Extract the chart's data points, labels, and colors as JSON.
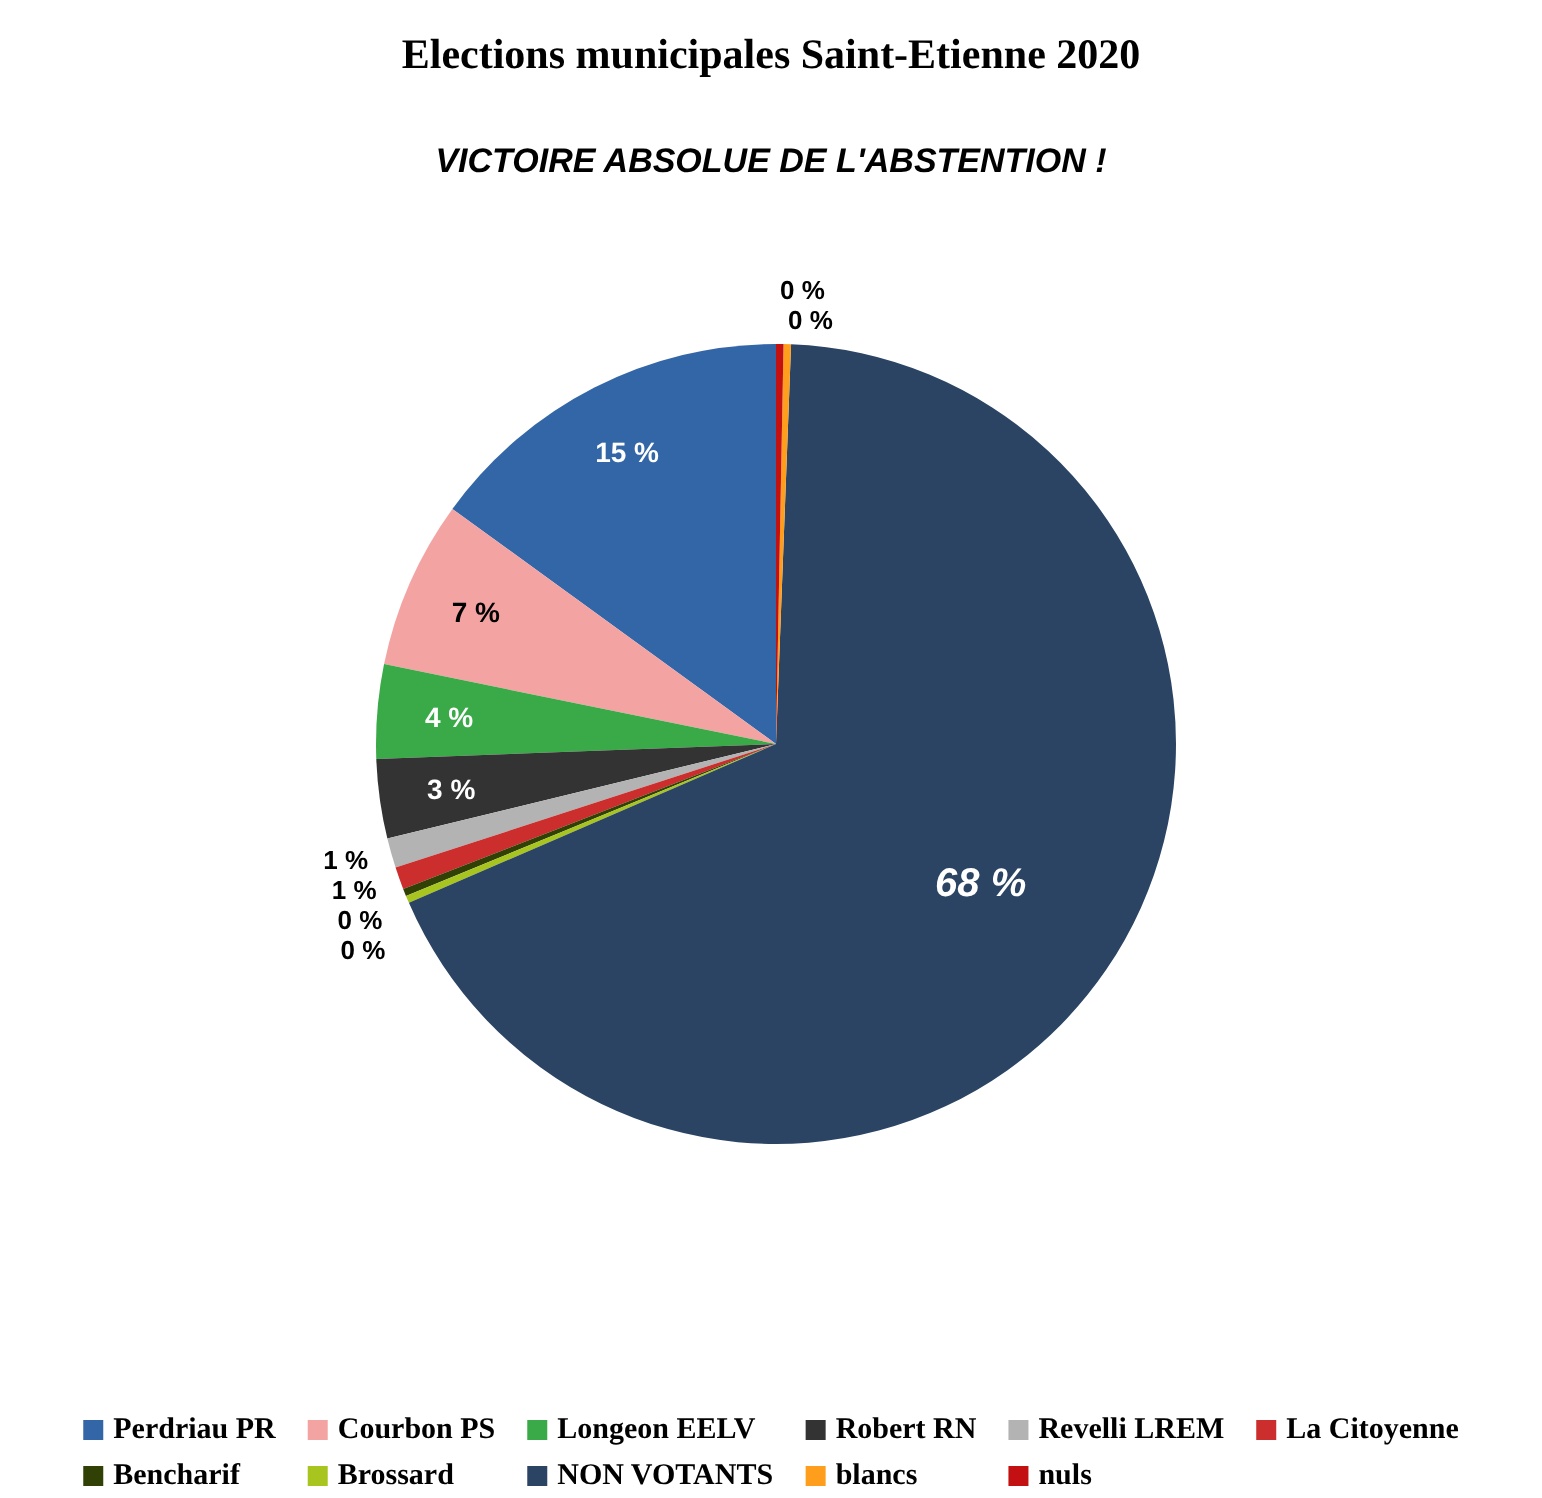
{
  "chart_data": {
    "type": "pie",
    "title": "Elections municipales Saint-Etienne 2020",
    "subtitle": "VICTOIRE ABSOLUE DE L'ABSTENTION !",
    "categories": [
      "Perdriau PR",
      "Courbon PS",
      "Longeon EELV",
      "Robert RN",
      "Revelli LREM",
      "La Citoyenne",
      "Bencharif",
      "Brossard",
      "NON VOTANTS",
      "blancs",
      "nuls"
    ],
    "values": [
      15.0,
      6.8,
      3.8,
      3.2,
      1.2,
      0.9,
      0.3,
      0.3,
      67.9,
      0.3,
      0.3
    ],
    "value_labels": [
      "15 %",
      "7 %",
      "4 %",
      "3 %",
      "1 %",
      "1 %",
      "0 %",
      "0 %",
      "68 %",
      "0 %",
      "0 %"
    ],
    "colors": [
      "#3366a6",
      "#f4a3a3",
      "#3aaa48",
      "#333333",
      "#b3b3b3",
      "#cc2d2d",
      "#314004",
      "#a7c51e",
      "#2b4463",
      "#ff9d1d",
      "#c31111"
    ],
    "legend": "bottom"
  }
}
